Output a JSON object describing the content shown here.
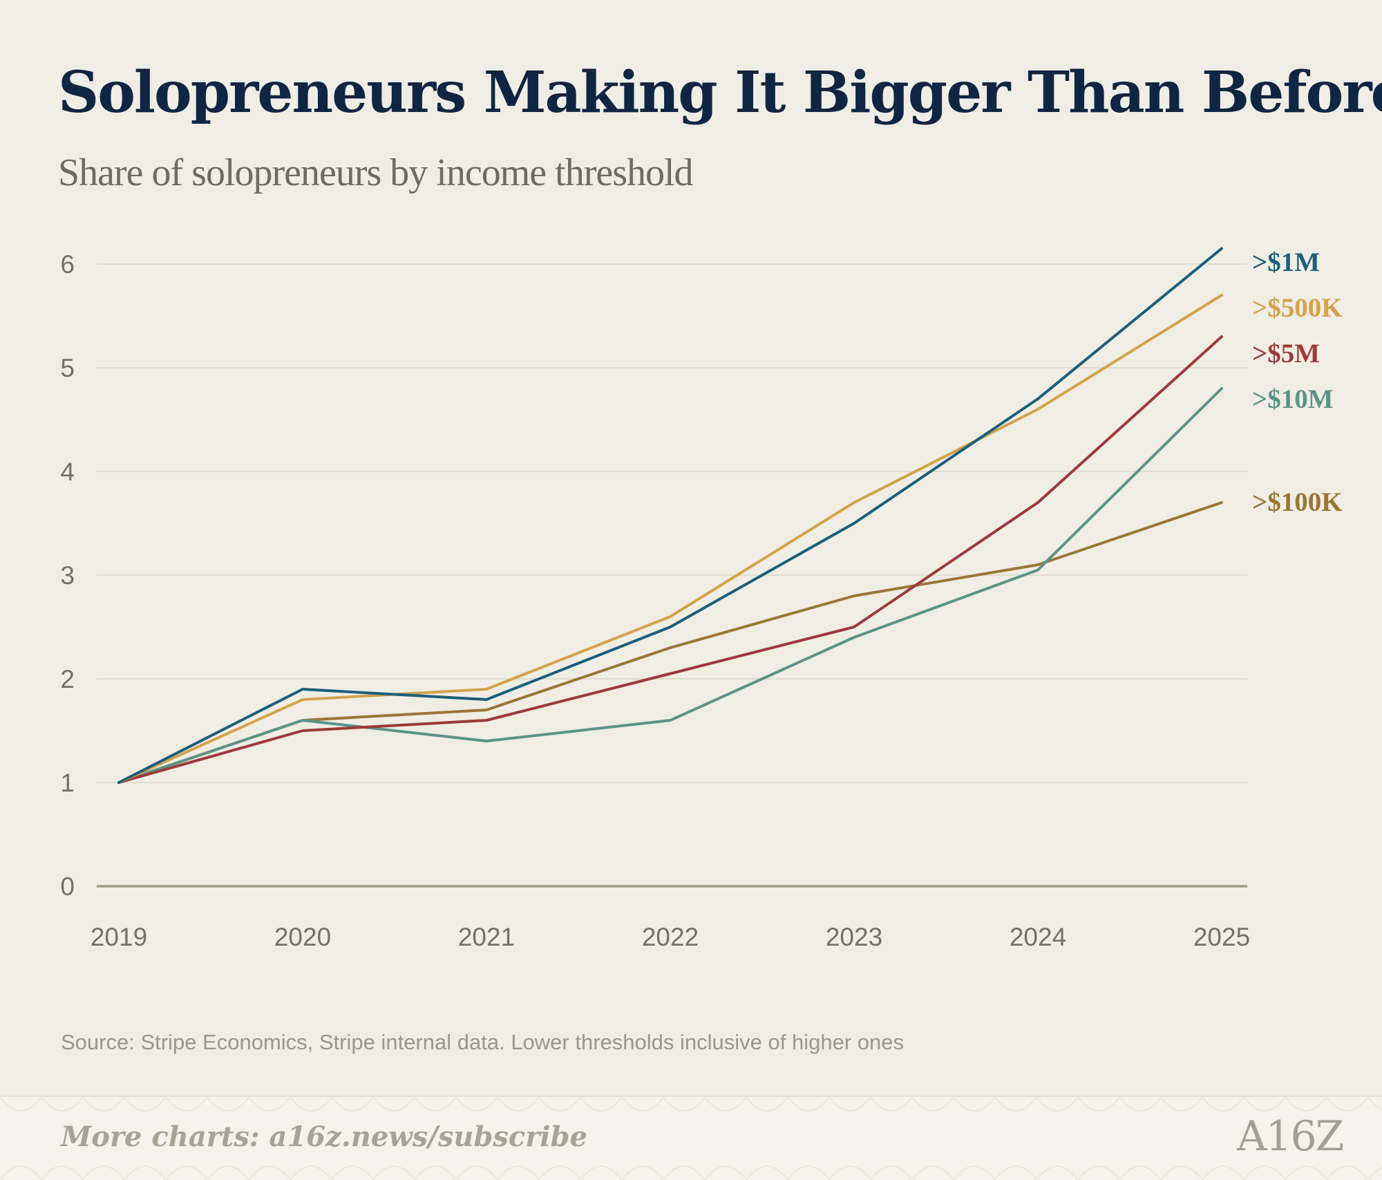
{
  "header": {
    "title": "Solopreneurs Making It Bigger Than Before",
    "subtitle": "Share of solopreneurs by income threshold"
  },
  "chart_data": {
    "type": "line",
    "title": "Solopreneurs Making It Bigger Than Before",
    "subtitle": "Share of solopreneurs by income threshold",
    "x": [
      "2019",
      "2020",
      "2021",
      "2022",
      "2023",
      "2024",
      "2025"
    ],
    "yticks": [
      0,
      1,
      2,
      3,
      4,
      5,
      6
    ],
    "ylim": [
      0,
      6.2
    ],
    "grid": true,
    "legend": "direct labels at line ends",
    "series": [
      {
        "name": ">$1M",
        "color": "#1b5f7b",
        "values": [
          1.0,
          1.9,
          1.8,
          2.5,
          3.5,
          4.7,
          6.15
        ]
      },
      {
        "name": ">$500K",
        "color": "#d3a24b",
        "values": [
          1.0,
          1.8,
          1.9,
          2.6,
          3.7,
          4.6,
          5.7
        ]
      },
      {
        "name": ">$5M",
        "color": "#9c3a3a",
        "values": [
          1.0,
          1.5,
          1.6,
          2.05,
          2.5,
          3.7,
          5.3
        ]
      },
      {
        "name": ">$10M",
        "color": "#5a9487",
        "values": [
          1.0,
          1.6,
          1.4,
          1.6,
          2.4,
          3.05,
          4.8
        ]
      },
      {
        "name": ">$100K",
        "color": "#9a7634",
        "values": [
          1.0,
          1.6,
          1.7,
          2.3,
          2.8,
          3.1,
          3.7
        ]
      }
    ]
  },
  "source": "Source: Stripe Economics, Stripe internal data. Lower thresholds inclusive of higher ones",
  "footer": {
    "link": "More charts: a16z.news/subscribe",
    "logo": "A16Z"
  }
}
